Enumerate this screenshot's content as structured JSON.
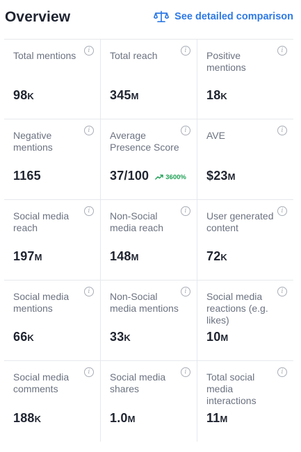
{
  "header": {
    "title": "Overview",
    "compare_link": "See detailed comparison",
    "compare_icon": "scale-icon",
    "accent_color": "#2f7ae5"
  },
  "metrics": [
    {
      "label": "Total mentions",
      "value": "98",
      "unit": "K"
    },
    {
      "label": "Total reach",
      "value": "345",
      "unit": "M"
    },
    {
      "label": "Positive mentions",
      "value": "18",
      "unit": "K"
    },
    {
      "label": "Negative mentions",
      "value": "1165",
      "unit": ""
    },
    {
      "label": "Average Presence Score",
      "value": "37/100",
      "unit": "",
      "trend": "3600%",
      "trend_color": "#1fa055"
    },
    {
      "label": "AVE",
      "value": "$23",
      "unit": "M"
    },
    {
      "label": "Social media reach",
      "value": "197",
      "unit": "M"
    },
    {
      "label": "Non-Social media reach",
      "value": "148",
      "unit": "M"
    },
    {
      "label": "User generated content",
      "value": "72",
      "unit": "K"
    },
    {
      "label": "Social media mentions",
      "value": "66",
      "unit": "K"
    },
    {
      "label": "Non-Social media mentions",
      "value": "33",
      "unit": "K"
    },
    {
      "label": "Social media reactions (e.g. likes)",
      "value": "10",
      "unit": "M"
    },
    {
      "label": "Social media comments",
      "value": "188",
      "unit": "K"
    },
    {
      "label": "Social media shares",
      "value": "1.0",
      "unit": "M"
    },
    {
      "label": "Total social media interactions",
      "value": "11",
      "unit": "M"
    }
  ],
  "info_icon_glyph": "i"
}
